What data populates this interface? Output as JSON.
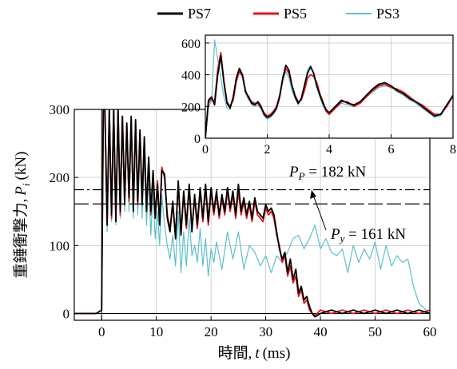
{
  "chart_data": [
    {
      "type": "line",
      "xlabel_text": "時間,",
      "xlabel_var": "t",
      "xlabel_unit": "(ms)",
      "ylabel_text": "重錘衝撃力,",
      "ylabel_var": "P",
      "ylabel_sub": "i",
      "ylabel_unit": "(kN)",
      "xlim": [
        -5,
        60
      ],
      "ylim": [
        -10,
        300
      ],
      "xticks": [
        0,
        10,
        20,
        30,
        40,
        50,
        60
      ],
      "yticks": [
        0,
        100,
        200,
        300
      ],
      "grid": true,
      "legend_position": "top",
      "series": [
        {
          "name": "PS7",
          "color": "#000000",
          "x": [
            -5,
            -1,
            0,
            0.3,
            0.6,
            1,
            1.4,
            1.8,
            2.2,
            2.6,
            3.0,
            3.4,
            3.8,
            4.2,
            4.6,
            5.0,
            5.4,
            5.8,
            6.2,
            6.6,
            7.0,
            7.4,
            7.8,
            8.2,
            8.6,
            9.0,
            9.4,
            9.8,
            10.2,
            10.6,
            11.0,
            11.5,
            12.0,
            12.5,
            13.0,
            13.5,
            14.0,
            14.5,
            15.0,
            15.5,
            16.0,
            16.5,
            17.0,
            17.5,
            18.0,
            18.5,
            19.0,
            19.5,
            20.0,
            20.5,
            21.0,
            21.5,
            22.0,
            22.5,
            23.0,
            23.5,
            24.0,
            24.5,
            25.0,
            25.5,
            26.0,
            26.5,
            27.0,
            27.5,
            28.0,
            28.5,
            29.0,
            29.5,
            30.0,
            30.5,
            31.0,
            31.5,
            32.0,
            32.5,
            33.0,
            33.5,
            34.0,
            34.5,
            35.0,
            35.5,
            36.0,
            36.5,
            37.0,
            37.5,
            38.0,
            38.5,
            39.0,
            40,
            42,
            44,
            46,
            48,
            50,
            52,
            54,
            56,
            58,
            60
          ],
          "y": [
            0,
            0,
            5,
            300,
            300,
            130,
            300,
            145,
            300,
            135,
            300,
            150,
            290,
            160,
            280,
            170,
            290,
            150,
            285,
            165,
            270,
            160,
            260,
            150,
            230,
            150,
            210,
            140,
            190,
            130,
            210,
            205,
            140,
            120,
            165,
            110,
            195,
            115,
            180,
            130,
            190,
            120,
            175,
            130,
            185,
            140,
            190,
            135,
            185,
            150,
            180,
            145,
            175,
            150,
            185,
            155,
            180,
            145,
            190,
            150,
            170,
            145,
            165,
            140,
            170,
            150,
            145,
            140,
            160,
            150,
            155,
            145,
            120,
            95,
            80,
            90,
            60,
            80,
            50,
            65,
            30,
            40,
            20,
            25,
            10,
            0,
            -5,
            0,
            5,
            0,
            5,
            0,
            5,
            0,
            5,
            0,
            5,
            0
          ]
        },
        {
          "name": "PS5",
          "color": "#e4161b",
          "x": [
            -5,
            -1,
            0,
            0.3,
            0.6,
            1,
            1.4,
            1.8,
            2.2,
            2.6,
            3.0,
            3.4,
            3.8,
            4.2,
            4.6,
            5.0,
            5.4,
            5.8,
            6.2,
            6.6,
            7.0,
            7.4,
            7.8,
            8.2,
            8.6,
            9.0,
            9.4,
            9.8,
            10.2,
            10.6,
            11.0,
            11.5,
            12.0,
            12.5,
            13.0,
            13.5,
            14.0,
            14.5,
            15.0,
            15.5,
            16.0,
            16.5,
            17.0,
            17.5,
            18.0,
            18.5,
            19.0,
            19.5,
            20.0,
            20.5,
            21.0,
            21.5,
            22.0,
            22.5,
            23.0,
            23.5,
            24.0,
            24.5,
            25.0,
            25.5,
            26.0,
            26.5,
            27.0,
            27.5,
            28.0,
            28.5,
            29.0,
            29.5,
            30.0,
            30.5,
            31.0,
            31.5,
            32.0,
            32.5,
            33.0,
            33.5,
            34.0,
            34.5,
            35.0,
            35.5,
            36.0,
            36.5,
            37.0,
            37.5,
            38.0,
            38.5,
            39.0,
            40,
            42,
            44,
            46,
            48,
            50,
            52,
            54,
            56,
            58,
            60
          ],
          "y": [
            0,
            0,
            5,
            300,
            300,
            135,
            300,
            140,
            300,
            140,
            300,
            145,
            290,
            165,
            275,
            165,
            285,
            155,
            280,
            160,
            265,
            165,
            255,
            155,
            225,
            145,
            205,
            145,
            195,
            135,
            215,
            200,
            145,
            125,
            160,
            115,
            190,
            120,
            175,
            125,
            185,
            125,
            170,
            125,
            180,
            135,
            185,
            130,
            180,
            145,
            175,
            140,
            170,
            145,
            180,
            150,
            175,
            140,
            180,
            145,
            165,
            140,
            160,
            135,
            165,
            145,
            140,
            135,
            155,
            145,
            150,
            140,
            115,
            100,
            75,
            85,
            55,
            70,
            45,
            55,
            25,
            35,
            15,
            20,
            5,
            0,
            -3,
            5,
            0,
            5,
            0,
            5,
            0,
            5,
            0,
            5,
            0,
            5
          ]
        },
        {
          "name": "PS3",
          "color": "#5bc0cc",
          "x": [
            -5,
            -1,
            0,
            0.3,
            0.6,
            1,
            1.4,
            1.8,
            2.2,
            2.6,
            3.0,
            3.4,
            3.8,
            4.2,
            4.6,
            5.0,
            5.4,
            5.8,
            6.2,
            6.6,
            7.0,
            7.4,
            7.8,
            8.2,
            8.6,
            9.0,
            9.4,
            9.8,
            10.2,
            10.6,
            11.0,
            11.5,
            12.0,
            12.5,
            13.0,
            13.5,
            14.0,
            14.5,
            15.0,
            15.5,
            16.0,
            16.5,
            17.0,
            17.5,
            18.0,
            18.5,
            19.0,
            19.5,
            20.0,
            20.5,
            21.0,
            22.0,
            23.0,
            24.0,
            25.0,
            26.0,
            27.0,
            28.0,
            29.0,
            30.0,
            31.0,
            32.0,
            33.0,
            34.0,
            35.0,
            36.0,
            37.0,
            38.0,
            39.0,
            40.0,
            41.0,
            42.0,
            43.0,
            44.0,
            45.0,
            46.0,
            47.0,
            48.0,
            49.0,
            50.0,
            51.0,
            52.0,
            53.0,
            54.0,
            55.0,
            56.0,
            57,
            58,
            60
          ],
          "y": [
            0,
            0,
            5,
            300,
            300,
            120,
            300,
            135,
            300,
            130,
            300,
            140,
            285,
            150,
            270,
            150,
            280,
            140,
            270,
            145,
            250,
            140,
            230,
            130,
            200,
            115,
            180,
            110,
            150,
            100,
            175,
            130,
            100,
            80,
            115,
            70,
            150,
            60,
            120,
            70,
            140,
            85,
            100,
            75,
            125,
            70,
            110,
            55,
            95,
            75,
            105,
            65,
            120,
            80,
            120,
            65,
            100,
            90,
            70,
            85,
            60,
            85,
            75,
            90,
            110,
            115,
            95,
            110,
            130,
            95,
            110,
            90,
            85,
            95,
            60,
            100,
            75,
            95,
            80,
            105,
            65,
            100,
            70,
            85,
            75,
            80,
            40,
            15,
            0
          ]
        }
      ],
      "reference_lines": [
        {
          "label_sym": "P",
          "label_sub": "P",
          "label_value": " = 182 kN",
          "value": 182,
          "style": "dashdot"
        },
        {
          "label_sym": "P",
          "label_sub": "y",
          "label_value": " = 161 kN",
          "value": 161,
          "style": "dashed"
        }
      ]
    },
    {
      "type": "line",
      "inset": true,
      "xlim": [
        0,
        8
      ],
      "ylim": [
        0,
        650
      ],
      "xticks": [
        0,
        2,
        4,
        6,
        8
      ],
      "yticks": [
        0,
        200,
        400,
        600
      ],
      "grid": true,
      "series": [
        {
          "name": "PS7",
          "color": "#000000",
          "x": [
            0,
            0.1,
            0.2,
            0.3,
            0.4,
            0.5,
            0.6,
            0.7,
            0.8,
            0.9,
            1.0,
            1.1,
            1.2,
            1.3,
            1.4,
            1.5,
            1.6,
            1.7,
            1.8,
            1.9,
            2.0,
            2.1,
            2.2,
            2.3,
            2.4,
            2.5,
            2.6,
            2.7,
            2.8,
            2.9,
            3.0,
            3.1,
            3.2,
            3.3,
            3.4,
            3.5,
            3.6,
            3.7,
            3.8,
            3.9,
            4.0,
            4.2,
            4.4,
            4.6,
            4.8,
            5.0,
            5.2,
            5.4,
            5.6,
            5.8,
            6.0,
            6.2,
            6.4,
            6.6,
            6.8,
            7.0,
            7.2,
            7.4,
            7.6,
            7.8,
            8.0
          ],
          "y": [
            0,
            240,
            260,
            210,
            400,
            520,
            350,
            220,
            190,
            260,
            380,
            440,
            400,
            290,
            260,
            220,
            210,
            230,
            200,
            150,
            130,
            140,
            160,
            190,
            260,
            380,
            460,
            430,
            330,
            260,
            220,
            250,
            330,
            410,
            450,
            410,
            330,
            270,
            220,
            180,
            160,
            200,
            240,
            220,
            210,
            230,
            270,
            310,
            340,
            350,
            330,
            300,
            280,
            250,
            230,
            200,
            170,
            140,
            150,
            210,
            270
          ]
        },
        {
          "name": "PS5",
          "color": "#e4161b",
          "x": [
            0,
            0.1,
            0.2,
            0.3,
            0.4,
            0.5,
            0.6,
            0.7,
            0.8,
            0.9,
            1.0,
            1.1,
            1.2,
            1.3,
            1.4,
            1.5,
            1.6,
            1.7,
            1.8,
            1.9,
            2.0,
            2.1,
            2.2,
            2.3,
            2.4,
            2.5,
            2.6,
            2.7,
            2.8,
            2.9,
            3.0,
            3.1,
            3.2,
            3.3,
            3.4,
            3.5,
            3.6,
            3.7,
            3.8,
            3.9,
            4.0,
            4.2,
            4.4,
            4.6,
            4.8,
            5.0,
            5.2,
            5.4,
            5.6,
            5.8,
            6.0,
            6.2,
            6.4,
            6.6,
            6.8,
            7.0,
            7.2,
            7.4,
            7.6,
            7.8,
            8.0
          ],
          "y": [
            0,
            220,
            250,
            230,
            430,
            540,
            360,
            230,
            200,
            240,
            360,
            420,
            390,
            300,
            250,
            230,
            220,
            220,
            190,
            160,
            140,
            150,
            170,
            200,
            270,
            370,
            440,
            410,
            330,
            270,
            230,
            240,
            300,
            380,
            400,
            390,
            350,
            280,
            230,
            170,
            150,
            190,
            230,
            230,
            200,
            220,
            260,
            300,
            330,
            340,
            320,
            310,
            290,
            260,
            230,
            210,
            180,
            150,
            150,
            200,
            270
          ]
        },
        {
          "name": "PS3",
          "color": "#5bc0cc",
          "x": [
            0,
            0.1,
            0.2,
            0.3,
            0.4,
            0.5,
            0.6,
            0.7,
            0.8,
            0.9,
            1.0,
            1.1,
            1.2,
            1.3,
            1.4,
            1.5,
            1.6,
            1.7,
            1.8,
            1.9,
            2.0,
            2.1,
            2.2,
            2.3,
            2.4,
            2.5,
            2.6,
            2.7,
            2.8,
            2.9,
            3.0,
            3.1,
            3.2,
            3.3,
            3.4,
            3.5,
            3.6,
            3.7,
            3.8,
            3.9,
            4.0,
            4.2,
            4.4,
            4.6,
            4.8,
            5.0,
            5.2,
            5.4,
            5.6,
            5.8,
            6.0,
            6.2,
            6.4,
            6.6,
            6.8,
            7.0,
            7.2,
            7.4,
            7.6,
            7.8,
            8.0
          ],
          "y": [
            0,
            200,
            230,
            620,
            500,
            380,
            260,
            190,
            180,
            250,
            370,
            430,
            380,
            280,
            240,
            210,
            200,
            210,
            180,
            140,
            120,
            130,
            150,
            180,
            250,
            360,
            420,
            380,
            300,
            250,
            210,
            250,
            340,
            430,
            460,
            400,
            320,
            260,
            200,
            170,
            150,
            190,
            220,
            210,
            200,
            220,
            260,
            290,
            320,
            330,
            320,
            290,
            270,
            240,
            220,
            190,
            160,
            130,
            140,
            200,
            260
          ]
        }
      ]
    }
  ]
}
